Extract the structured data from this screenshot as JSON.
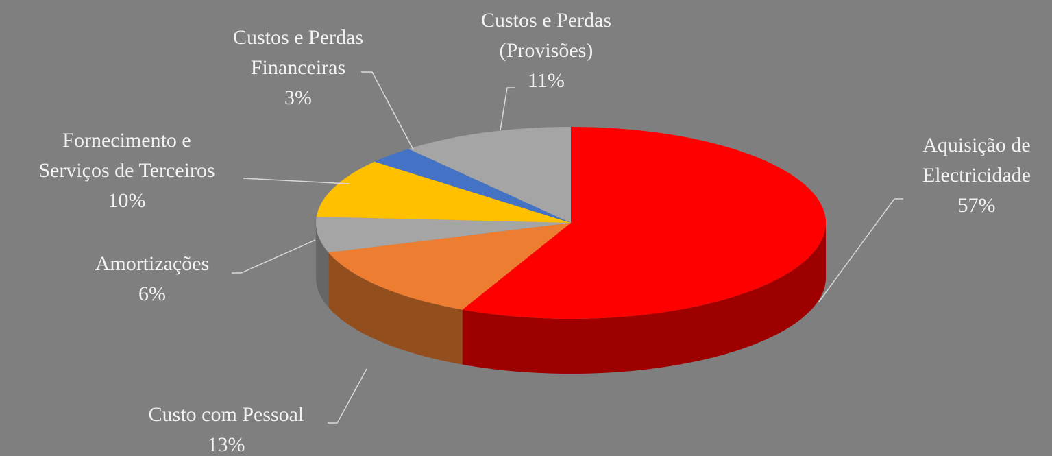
{
  "chart_data": {
    "type": "pie3d",
    "categories": [
      "Aquisição de Electricidade",
      "Custo com Pessoal",
      "Amortizações",
      "Fornecimento e Serviços de Terceiros",
      "Custos e Perdas Financeiras",
      "Custos e Perdas (Provisões)"
    ],
    "values": [
      57,
      13,
      6,
      10,
      3,
      11
    ],
    "value_labels": [
      "57%",
      "13%",
      "6%",
      "10%",
      "3%",
      "11%"
    ],
    "colors": [
      "#ff0000",
      "#ed7d31",
      "#a5a5a5",
      "#ffc000",
      "#4472c4",
      "#a5a5a5"
    ]
  }
}
